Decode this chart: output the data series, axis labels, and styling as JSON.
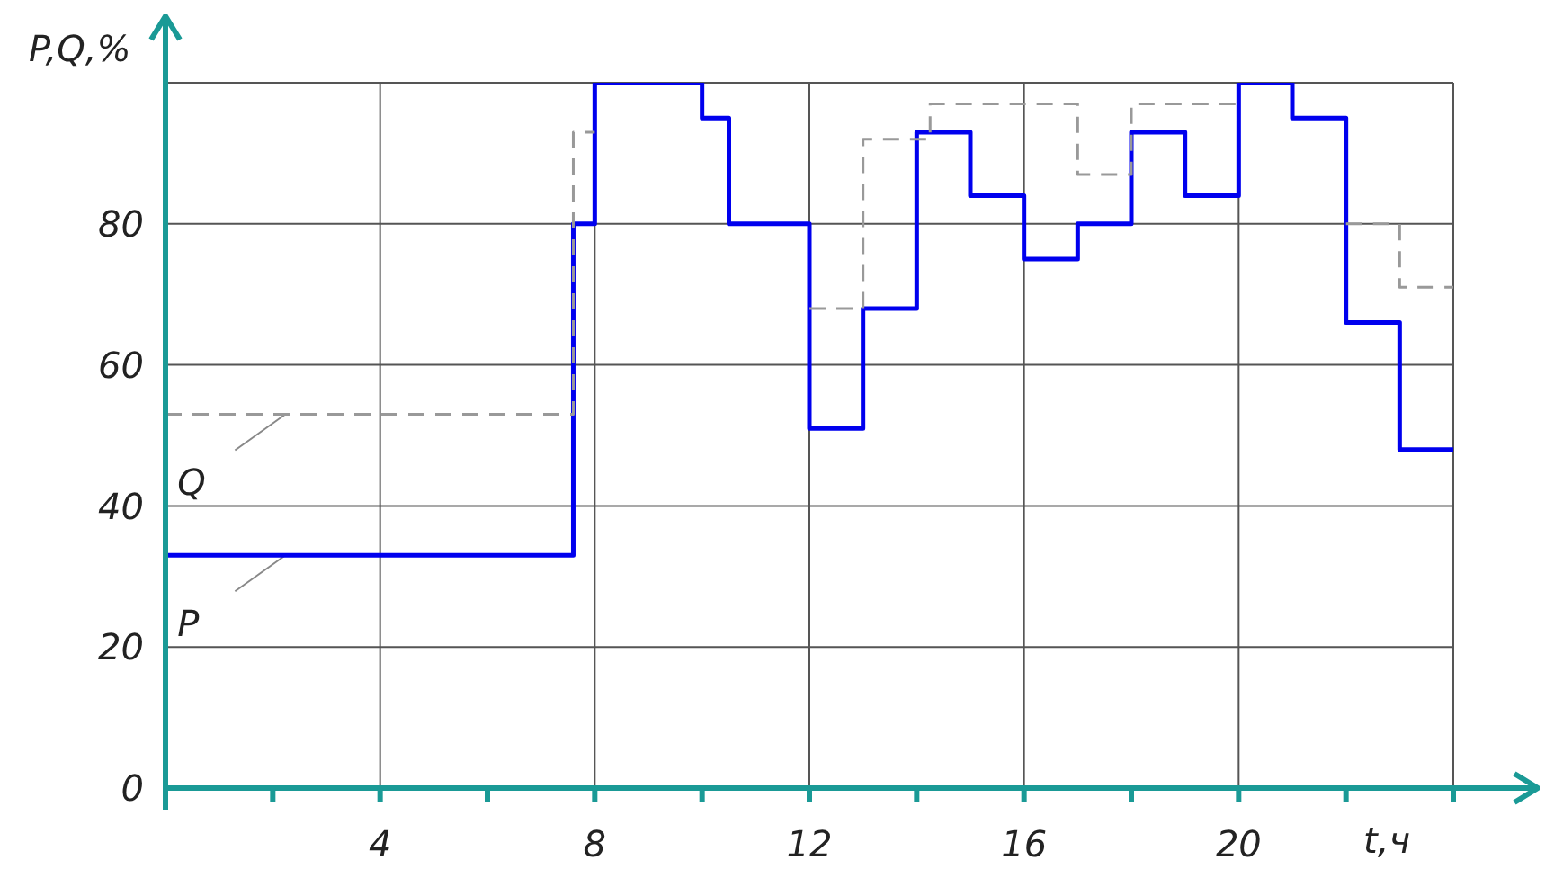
{
  "chart_data": {
    "type": "step",
    "xlabel": "t,ч",
    "ylabel": "P,Q,%",
    "xlim": [
      0,
      24
    ],
    "ylim": [
      0,
      100
    ],
    "xticks": [
      {
        "value": 2,
        "label": null
      },
      4,
      {
        "value": 6,
        "label": null
      },
      8,
      {
        "value": 10,
        "label": null
      },
      12,
      {
        "value": 14,
        "label": null
      },
      16,
      {
        "value": 18,
        "label": null
      },
      20,
      {
        "value": 22,
        "label": null
      },
      {
        "value": 24,
        "label": null
      }
    ],
    "yticks": [
      0,
      20,
      40,
      60,
      80,
      {
        "value": 100,
        "label": null
      }
    ],
    "grid": true,
    "series": [
      {
        "name": "P",
        "color": "#0000ee",
        "line_style": "solid",
        "x": [
          0,
          7.6,
          8,
          10,
          10.5,
          12,
          13,
          14,
          15,
          16,
          17,
          18,
          19,
          20,
          21,
          22,
          23,
          24
        ],
        "values": [
          33,
          80,
          100,
          95,
          80,
          51,
          68,
          93,
          84,
          75,
          80,
          93,
          84,
          100,
          95,
          66,
          48,
          48
        ]
      },
      {
        "name": "Q",
        "color": "#999999",
        "line_style": "dashed",
        "x": [
          0,
          7.6,
          8,
          12,
          13,
          14.25,
          17,
          18,
          20,
          22,
          23,
          24
        ],
        "values": [
          53,
          93,
          null,
          68,
          92,
          97,
          87,
          97,
          null,
          80,
          71,
          71
        ]
      }
    ]
  }
}
